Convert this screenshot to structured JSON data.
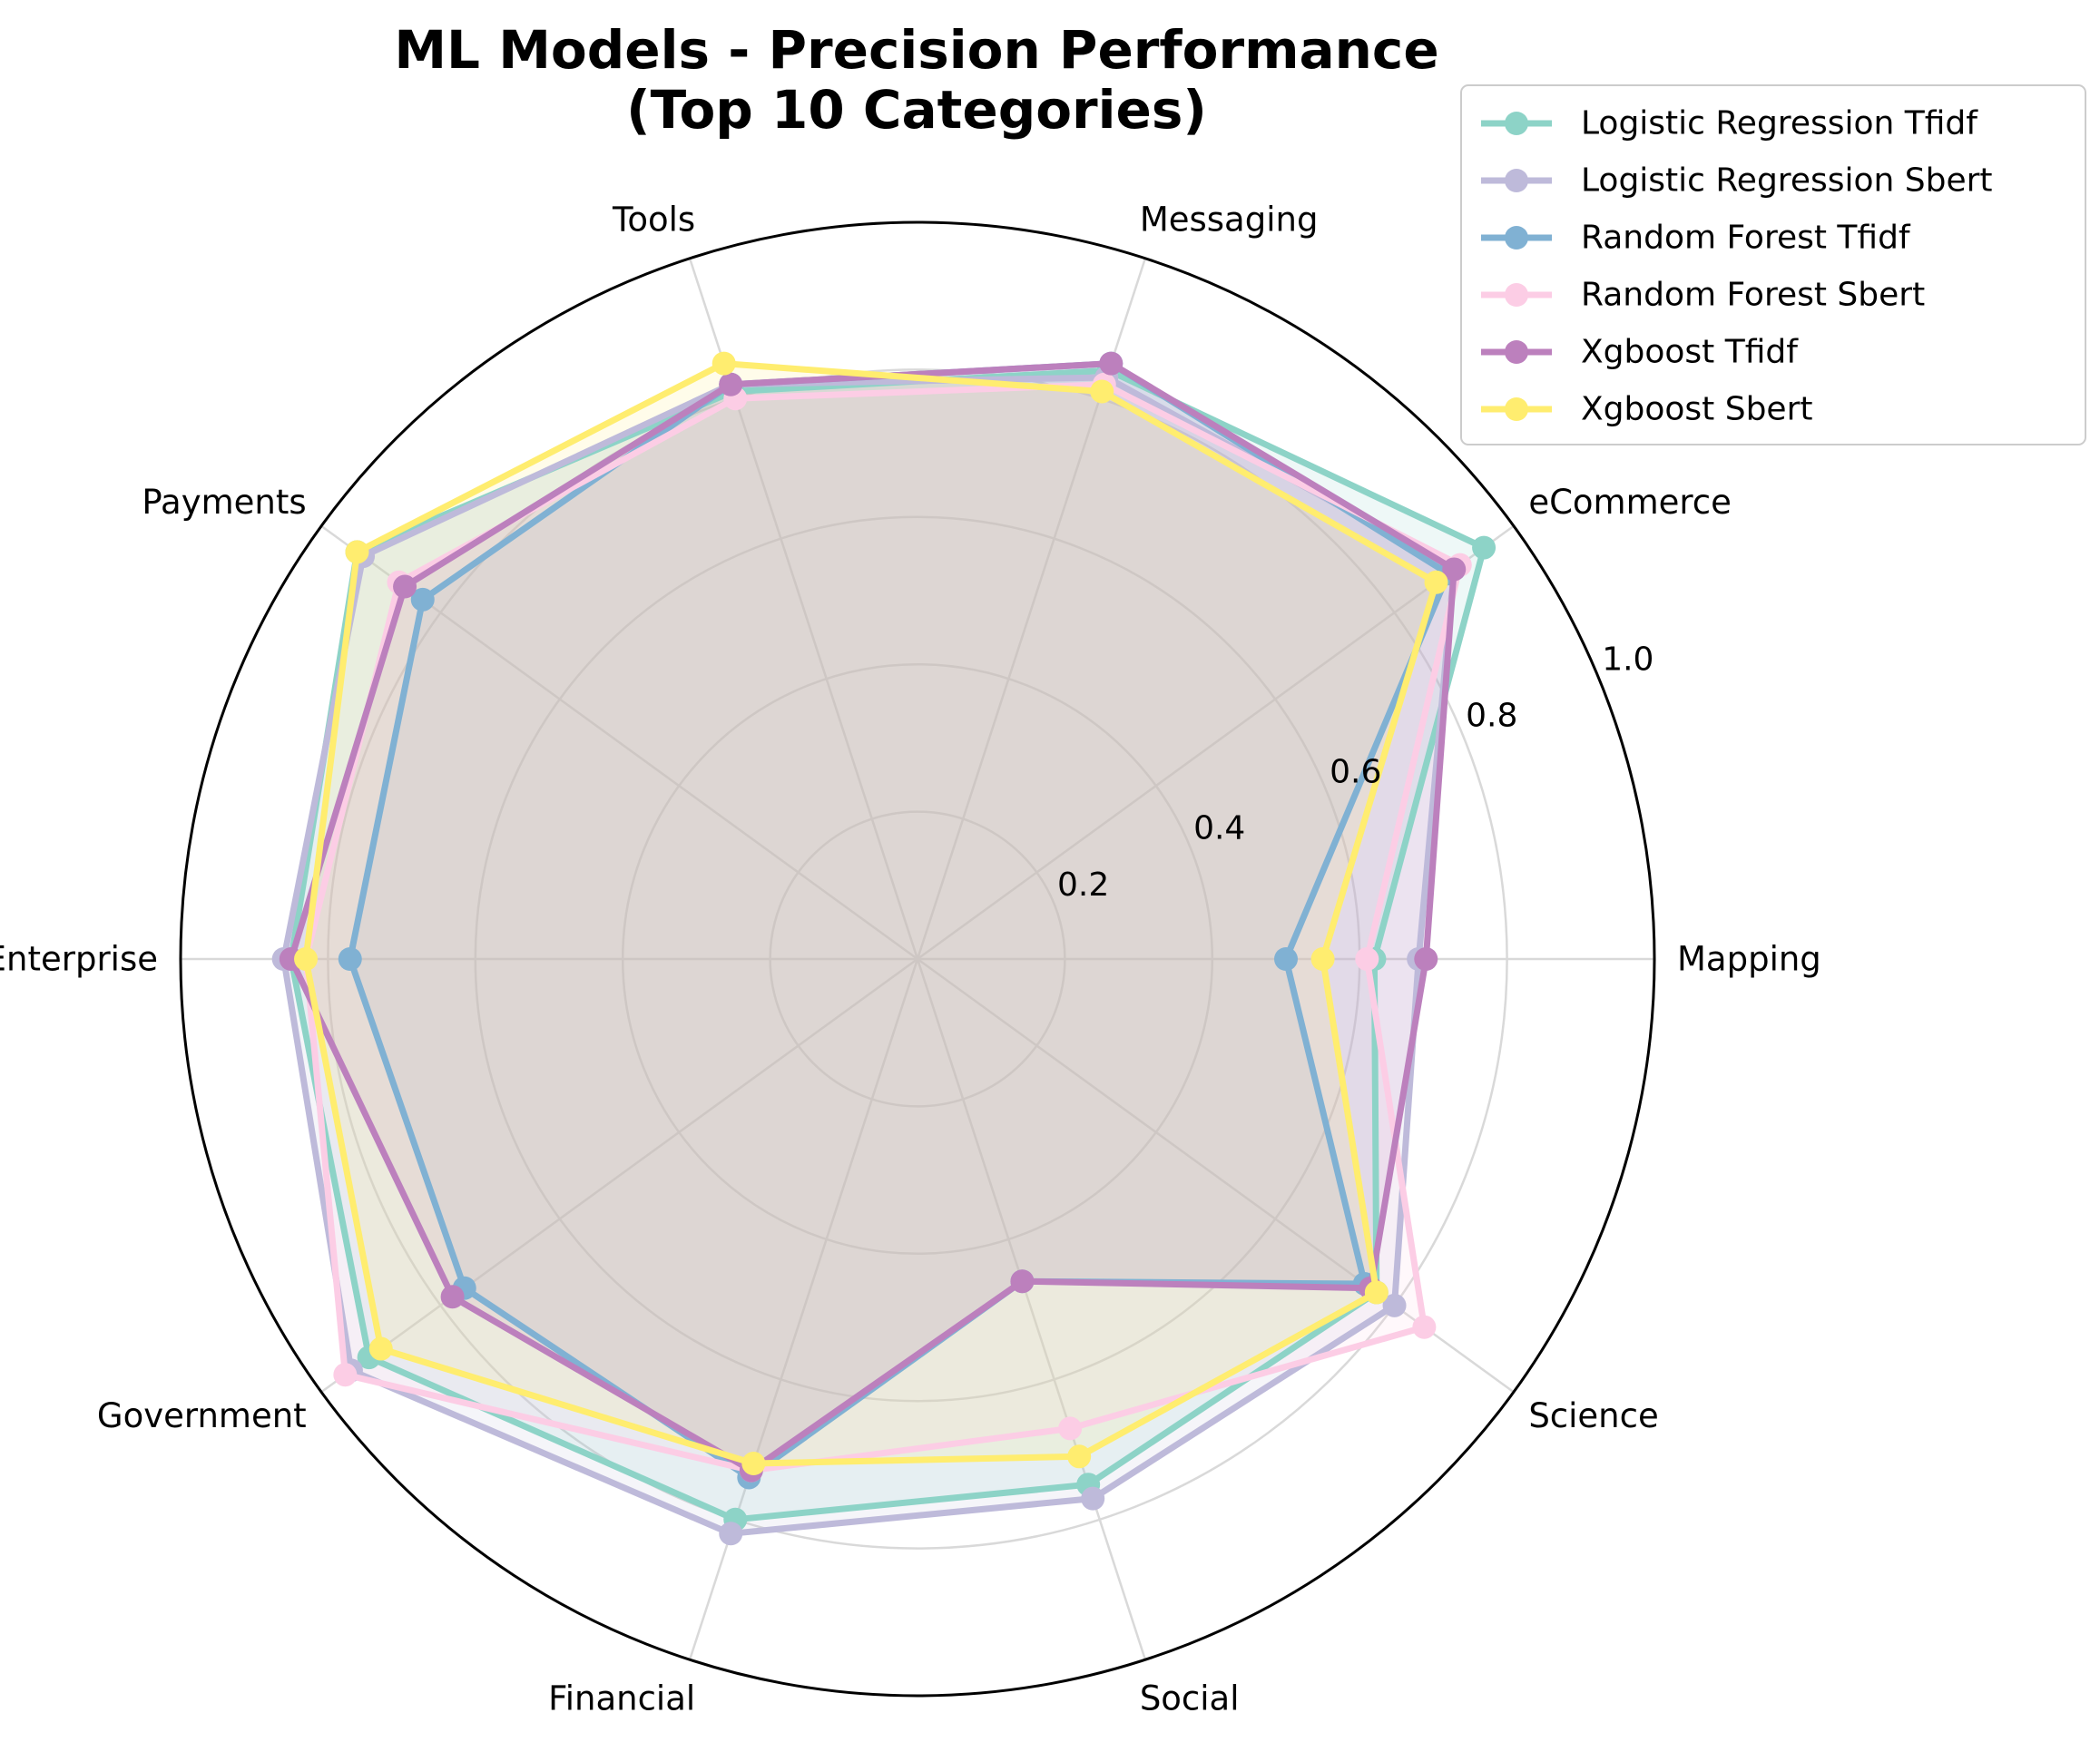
{
  "chart_data": {
    "type": "radar",
    "title": [
      "ML Models - Precision Performance",
      "(Top 10 Categories)"
    ],
    "categories": [
      "Mapping",
      "eCommerce",
      "Messaging",
      "Tools",
      "Payments",
      "Enterprise",
      "Government",
      "Financial",
      "Social",
      "Science"
    ],
    "rlim": [
      0,
      1.0
    ],
    "rticks": [
      "0.2",
      "0.4",
      "0.6",
      "0.8",
      "1.0"
    ],
    "grid": true,
    "legend_position": "top-right",
    "series": [
      {
        "name": "Logistic Regression Tfidf",
        "color": "#8dd3c7",
        "values": [
          0.62,
          0.95,
          0.84,
          0.81,
          0.94,
          0.85,
          0.92,
          0.8,
          0.75,
          0.77
        ]
      },
      {
        "name": "Logistic Regression Sbert",
        "color": "#bebada",
        "values": [
          0.68,
          0.9,
          0.83,
          0.82,
          0.93,
          0.86,
          0.95,
          0.82,
          0.77,
          0.8
        ]
      },
      {
        "name": "Random Forest Tfidf",
        "color": "#80b1d3",
        "values": [
          0.5,
          0.89,
          0.85,
          0.82,
          0.83,
          0.77,
          0.76,
          0.74,
          0.46,
          0.75
        ]
      },
      {
        "name": "Random Forest Sbert",
        "color": "#fccde5",
        "values": [
          0.61,
          0.91,
          0.82,
          0.8,
          0.87,
          0.83,
          0.96,
          0.73,
          0.67,
          0.85
        ]
      },
      {
        "name": "Xgboost Tfidf",
        "color": "#bc80bd",
        "values": [
          0.69,
          0.9,
          0.85,
          0.82,
          0.86,
          0.85,
          0.78,
          0.73,
          0.46,
          0.76
        ]
      },
      {
        "name": "Xgboost Sbert",
        "color": "#ffed6f",
        "values": [
          0.55,
          0.87,
          0.81,
          0.85,
          0.94,
          0.83,
          0.9,
          0.72,
          0.71,
          0.77
        ]
      }
    ]
  }
}
